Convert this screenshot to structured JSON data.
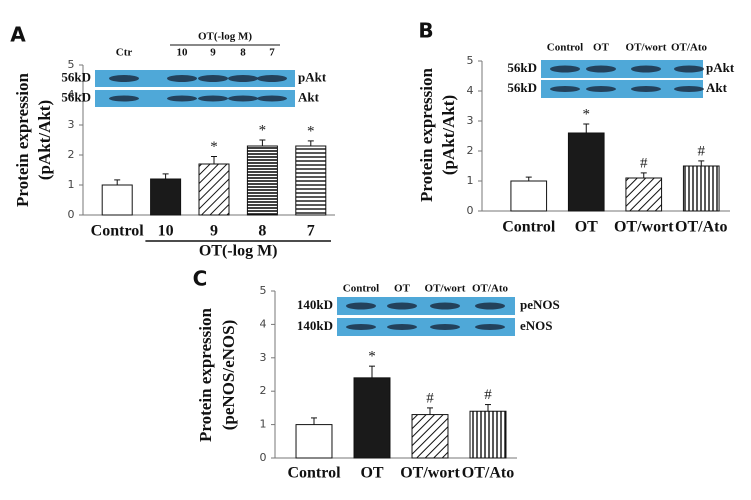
{
  "chart_data": [
    {
      "type": "bar",
      "panel": "A",
      "ylabel": [
        "Protein expression",
        "(pAkt/Akt)"
      ],
      "categories": [
        "Control",
        "10",
        "9",
        "8",
        "7"
      ],
      "group_label": "OT(-log M)",
      "values": [
        1.0,
        1.2,
        1.7,
        2.3,
        2.3
      ],
      "errors": [
        0.17,
        0.17,
        0.25,
        0.2,
        0.17
      ],
      "patterns": [
        "white",
        "black",
        "diagonal",
        "dense-horizontal",
        "horizontal"
      ],
      "annotations": [
        null,
        null,
        "*",
        "*",
        "*"
      ],
      "ylim": [
        0,
        5
      ],
      "yticks": [
        0,
        1,
        2,
        3,
        4,
        5
      ],
      "blot": {
        "lanes": [
          "Ctr",
          "10",
          "9",
          "8",
          "7"
        ],
        "group_label": "OT(-log M)",
        "rows": [
          {
            "size": "56kD",
            "protein": "pAkt"
          },
          {
            "size": "56kD",
            "protein": "Akt"
          }
        ]
      }
    },
    {
      "type": "bar",
      "panel": "B",
      "ylabel": [
        "Protein expression",
        "(pAkt/Akt)"
      ],
      "categories": [
        "Control",
        "OT",
        "OT/wort",
        "OT/Ato"
      ],
      "values": [
        1.0,
        2.6,
        1.1,
        1.5
      ],
      "errors": [
        0.13,
        0.3,
        0.17,
        0.17
      ],
      "patterns": [
        "white",
        "black",
        "diagonal",
        "vertical"
      ],
      "annotations": [
        null,
        "*",
        "#",
        "#"
      ],
      "ylim": [
        0,
        5
      ],
      "yticks": [
        0,
        1,
        2,
        3,
        4,
        5
      ],
      "blot": {
        "lanes": [
          "Control",
          "OT",
          "OT/wort",
          "OT/Ato"
        ],
        "rows": [
          {
            "size": "56kD",
            "protein": "pAkt"
          },
          {
            "size": "56kD",
            "protein": "Akt"
          }
        ]
      }
    },
    {
      "type": "bar",
      "panel": "C",
      "ylabel": [
        "Protein expression",
        "(peNOS/eNOS)"
      ],
      "categories": [
        "Control",
        "OT",
        "OT/wort",
        "OT/Ato"
      ],
      "values": [
        1.0,
        2.4,
        1.3,
        1.4
      ],
      "errors": [
        0.2,
        0.35,
        0.2,
        0.2
      ],
      "patterns": [
        "white",
        "black",
        "diagonal",
        "vertical"
      ],
      "annotations": [
        null,
        "*",
        "#",
        "#"
      ],
      "ylim": [
        0,
        5
      ],
      "yticks": [
        0,
        1,
        2,
        3,
        4,
        5
      ],
      "blot": {
        "lanes": [
          "Control",
          "OT",
          "OT/wort",
          "OT/Ato"
        ],
        "rows": [
          {
            "size": "140kD",
            "protein": "peNOS"
          },
          {
            "size": "140kD",
            "protein": "eNOS"
          }
        ]
      }
    }
  ]
}
